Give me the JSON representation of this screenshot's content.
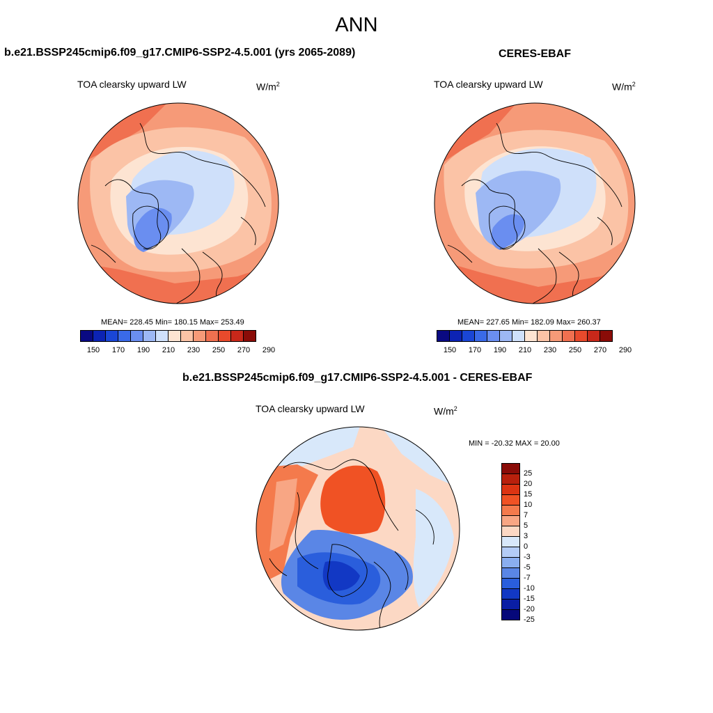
{
  "page_title": "ANN",
  "panels": {
    "model": {
      "title": "b.e21.BSSP245cmip6.f09_g17.CMIP6-SSP2-4.5.001 (yrs 2065-2089)",
      "variable": "TOA clearsky upward LW",
      "units_base": "W/m",
      "units_exp": "2",
      "stats": "MEAN= 228.45  Min= 180.15  Max= 253.49"
    },
    "obs": {
      "title": "CERES-EBAF",
      "variable": "TOA clearsky upward LW",
      "units_base": "W/m",
      "units_exp": "2",
      "stats": "MEAN= 227.65  Min= 182.09  Max= 260.37"
    },
    "diff": {
      "title": "b.e21.BSSP245cmip6.f09_g17.CMIP6-SSP2-4.5.001 - CERES-EBAF",
      "variable": "TOA clearsky upward LW",
      "units_base": "W/m",
      "units_exp": "2",
      "stats": "MIN = -20.32 MAX =  20.00"
    }
  },
  "colorbar_abs": {
    "colors": [
      "#0a0a82",
      "#0c23b4",
      "#1a46d6",
      "#3a6ae8",
      "#6a8ef0",
      "#9db8f4",
      "#cfe0fa",
      "#fde4d2",
      "#fbc3a6",
      "#f69a78",
      "#f07050",
      "#e84a2c",
      "#c8281a",
      "#8a0c08"
    ],
    "tick_labels": [
      "150",
      "170",
      "190",
      "210",
      "230",
      "250",
      "270",
      "290"
    ]
  },
  "colorbar_diff": {
    "colors": [
      "#8a0c08",
      "#b8200c",
      "#dc3412",
      "#f05224",
      "#f47a4c",
      "#f8a684",
      "#fcd8c4",
      "#d8e8fa",
      "#b4ccf6",
      "#8aaef0",
      "#5a86e6",
      "#2a5edc",
      "#1238c4",
      "#0a1ea4",
      "#06087a"
    ],
    "labels": [
      "25",
      "20",
      "15",
      "10",
      "7",
      "5",
      "3",
      "0",
      "-3",
      "-5",
      "-7",
      "-10",
      "-15",
      "-20",
      "-25"
    ]
  },
  "chart_data": [
    {
      "type": "heatmap",
      "title": "b.e21.BSSP245cmip6.f09_g17.CMIP6-SSP2-4.5.001 (yrs 2065-2089)",
      "variable": "TOA clearsky upward LW",
      "units": "W/m2",
      "projection": "north polar stereographic",
      "mean": 228.45,
      "min": 180.15,
      "max": 253.49,
      "levels": [
        150,
        160,
        170,
        180,
        190,
        200,
        210,
        220,
        230,
        240,
        250,
        260,
        270,
        280,
        290
      ]
    },
    {
      "type": "heatmap",
      "title": "CERES-EBAF",
      "variable": "TOA clearsky upward LW",
      "units": "W/m2",
      "projection": "north polar stereographic",
      "mean": 227.65,
      "min": 182.09,
      "max": 260.37,
      "levels": [
        150,
        160,
        170,
        180,
        190,
        200,
        210,
        220,
        230,
        240,
        250,
        260,
        270,
        280,
        290
      ]
    },
    {
      "type": "heatmap",
      "title": "b.e21.BSSP245cmip6.f09_g17.CMIP6-SSP2-4.5.001 - CERES-EBAF",
      "variable": "TOA clearsky upward LW",
      "units": "W/m2",
      "projection": "north polar stereographic",
      "min": -20.32,
      "max": 20.0,
      "levels": [
        -25,
        -20,
        -15,
        -10,
        -7,
        -5,
        -3,
        0,
        3,
        5,
        7,
        10,
        15,
        20,
        25
      ]
    }
  ]
}
